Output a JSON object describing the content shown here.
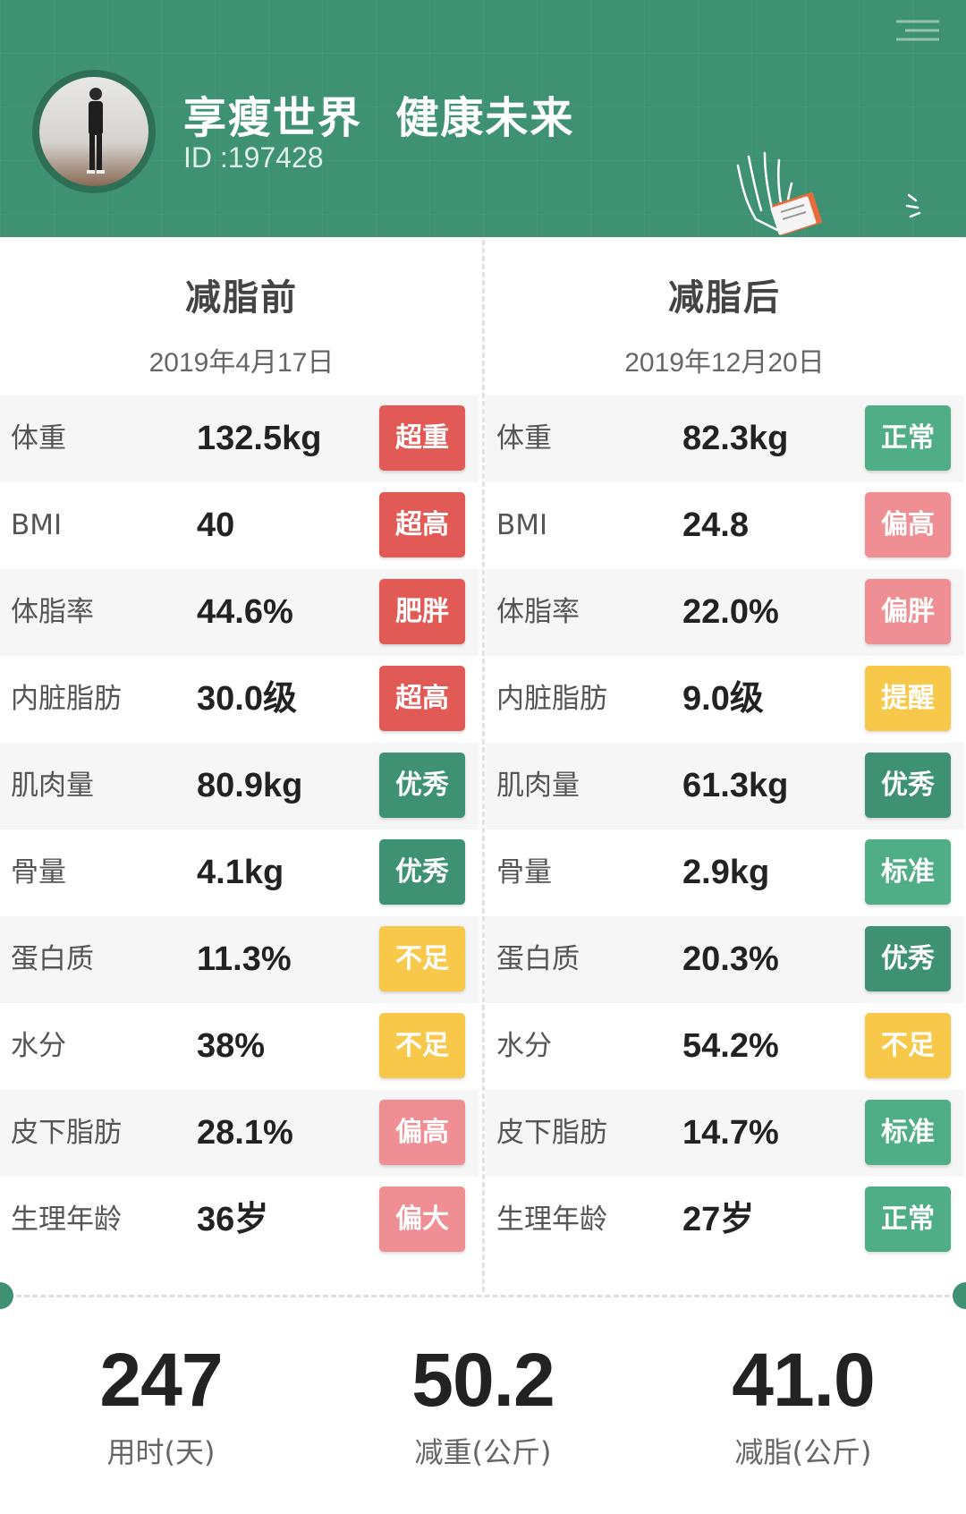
{
  "header": {
    "title": "享瘦世界  健康未来",
    "id_text": "ID :197428",
    "accent_color": "#3e9273"
  },
  "before": {
    "title": "减脂前",
    "date": "2019年4月17日",
    "rows": [
      {
        "label": "体重",
        "value": "132.5kg",
        "status": "超重",
        "color": "#e25a55"
      },
      {
        "label": "BMI",
        "value": "40",
        "status": "超高",
        "color": "#e25a55"
      },
      {
        "label": "体脂率",
        "value": "44.6%",
        "status": "肥胖",
        "color": "#e25a55"
      },
      {
        "label": "内脏脂肪",
        "value": "30.0级",
        "status": "超高",
        "color": "#e25a55"
      },
      {
        "label": "肌肉量",
        "value": "80.9kg",
        "status": "优秀",
        "color": "#3e9273"
      },
      {
        "label": "骨量",
        "value": "4.1kg",
        "status": "优秀",
        "color": "#3e9273"
      },
      {
        "label": "蛋白质",
        "value": "11.3%",
        "status": "不足",
        "color": "#f7c84a"
      },
      {
        "label": "水分",
        "value": "38%",
        "status": "不足",
        "color": "#f7c84a"
      },
      {
        "label": "皮下脂肪",
        "value": "28.1%",
        "status": "偏高",
        "color": "#f08f93"
      },
      {
        "label": "生理年龄",
        "value": "36岁",
        "status": "偏大",
        "color": "#f08f93"
      }
    ]
  },
  "after": {
    "title": "减脂后",
    "date": "2019年12月20日",
    "rows": [
      {
        "label": "体重",
        "value": "82.3kg",
        "status": "正常",
        "color": "#4fae86"
      },
      {
        "label": "BMI",
        "value": "24.8",
        "status": "偏高",
        "color": "#f08f93"
      },
      {
        "label": "体脂率",
        "value": "22.0%",
        "status": "偏胖",
        "color": "#f08f93"
      },
      {
        "label": "内脏脂肪",
        "value": "9.0级",
        "status": "提醒",
        "color": "#f7c84a"
      },
      {
        "label": "肌肉量",
        "value": "61.3kg",
        "status": "优秀",
        "color": "#3e9273"
      },
      {
        "label": "骨量",
        "value": "2.9kg",
        "status": "标准",
        "color": "#4fae86"
      },
      {
        "label": "蛋白质",
        "value": "20.3%",
        "status": "优秀",
        "color": "#3e9273"
      },
      {
        "label": "水分",
        "value": "54.2%",
        "status": "不足",
        "color": "#f7c84a"
      },
      {
        "label": "皮下脂肪",
        "value": "14.7%",
        "status": "标准",
        "color": "#4fae86"
      },
      {
        "label": "生理年龄",
        "value": "27岁",
        "status": "正常",
        "color": "#4fae86"
      }
    ]
  },
  "summary": [
    {
      "value": "247",
      "caption": "用时(天)"
    },
    {
      "value": "50.2",
      "caption": "减重(公斤)"
    },
    {
      "value": "41.0",
      "caption": "减脂(公斤)"
    }
  ]
}
